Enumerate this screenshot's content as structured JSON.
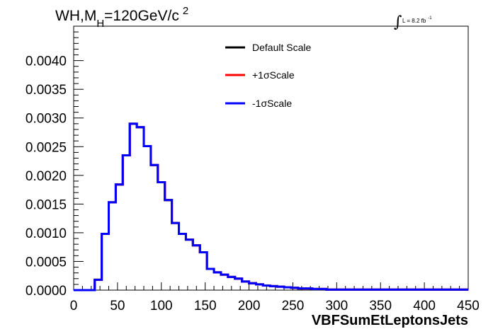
{
  "chart_data": {
    "type": "line",
    "title": {
      "prefix": "WH,M",
      "subscript": "H",
      "middle": "=120GeV/c",
      "superscript": "2"
    },
    "luminosity": {
      "integral_symbol": "∫",
      "text": "L = 8.2 fb",
      "superscript": "-1"
    },
    "xlabel": "VBFSumEtLeptonsJets",
    "ylabel": "",
    "xlim": [
      0,
      450
    ],
    "ylim": [
      0,
      0.0046
    ],
    "x_ticks": [
      0,
      50,
      100,
      150,
      200,
      250,
      300,
      350,
      400,
      450
    ],
    "x_tick_labels": [
      "0",
      "50",
      "100",
      "150",
      "200",
      "250",
      "300",
      "350",
      "400",
      "450"
    ],
    "y_ticks": [
      0,
      0.0005,
      0.001,
      0.0015,
      0.002,
      0.0025,
      0.003,
      0.0035,
      0.004
    ],
    "y_tick_labels": [
      "0.0000",
      "0.0005",
      "0.0010",
      "0.0015",
      "0.0020",
      "0.0025",
      "0.0030",
      "0.0035",
      "0.0040"
    ],
    "grid": false,
    "legend_position": "top-center",
    "bin_edges": [
      0,
      8,
      16,
      24,
      32,
      40,
      48,
      56,
      64,
      72,
      80,
      88,
      96,
      104,
      112,
      120,
      128,
      136,
      144,
      152,
      160,
      168,
      176,
      184,
      192,
      200,
      208,
      216,
      224,
      232,
      240,
      248,
      256,
      264,
      272,
      280,
      288,
      296,
      304,
      312,
      320,
      328,
      336,
      344,
      352,
      360,
      368,
      376,
      384,
      392,
      400,
      408,
      416,
      424,
      432,
      440,
      448,
      450
    ],
    "series": [
      {
        "name": "Default Scale",
        "color": "#000000",
        "values": [
          0,
          0,
          0,
          0.00018,
          0.00098,
          0.00153,
          0.00184,
          0.00235,
          0.0029,
          0.00284,
          0.00251,
          0.00218,
          0.00188,
          0.00157,
          0.00117,
          0.00098,
          0.00088,
          0.00078,
          0.00066,
          0.00037,
          0.00031,
          0.00027,
          0.00023,
          0.0002,
          0.00015,
          0.00012,
          0.0001,
          8e-05,
          7e-05,
          6e-05,
          5e-05,
          4e-05,
          3e-05,
          3e-05,
          2e-05,
          2e-05,
          1e-05,
          1e-05,
          1e-05,
          1e-05,
          1e-05,
          1e-05,
          1e-05,
          1e-05,
          1e-05,
          1e-05,
          1e-05,
          1e-05,
          1e-05,
          1e-05,
          1e-05,
          1e-05,
          1e-05,
          1e-05,
          1e-05,
          1e-05,
          1e-05
        ]
      },
      {
        "name": "+1σScale",
        "color": "#ff0000",
        "values": [
          0,
          0,
          0,
          0.00018,
          0.00098,
          0.00153,
          0.00184,
          0.00235,
          0.0029,
          0.00284,
          0.00251,
          0.00218,
          0.00188,
          0.00157,
          0.00117,
          0.00098,
          0.00088,
          0.00078,
          0.00066,
          0.00037,
          0.00031,
          0.00027,
          0.00023,
          0.0002,
          0.00015,
          0.00012,
          0.0001,
          8e-05,
          7e-05,
          6e-05,
          5e-05,
          4e-05,
          3e-05,
          3e-05,
          2e-05,
          2e-05,
          1e-05,
          1e-05,
          1e-05,
          1e-05,
          1e-05,
          1e-05,
          1e-05,
          1e-05,
          1e-05,
          1e-05,
          1e-05,
          1e-05,
          1e-05,
          1e-05,
          1e-05,
          1e-05,
          1e-05,
          1e-05,
          1e-05,
          1e-05,
          1e-05
        ]
      },
      {
        "name": "-1σScale",
        "color": "#0000ff",
        "values": [
          0,
          0,
          0,
          0.00018,
          0.00098,
          0.00153,
          0.00184,
          0.00235,
          0.0029,
          0.00284,
          0.00251,
          0.00218,
          0.00188,
          0.00157,
          0.00117,
          0.00098,
          0.00088,
          0.00078,
          0.00066,
          0.00037,
          0.00031,
          0.00027,
          0.00023,
          0.0002,
          0.00015,
          0.00012,
          0.0001,
          8e-05,
          7e-05,
          6e-05,
          5e-05,
          4e-05,
          3e-05,
          3e-05,
          2e-05,
          2e-05,
          1e-05,
          1e-05,
          1e-05,
          1e-05,
          1e-05,
          1e-05,
          1e-05,
          1e-05,
          1e-05,
          1e-05,
          1e-05,
          1e-05,
          1e-05,
          1e-05,
          1e-05,
          1e-05,
          1e-05,
          1e-05,
          1e-05,
          1e-05,
          1e-05
        ]
      }
    ]
  }
}
